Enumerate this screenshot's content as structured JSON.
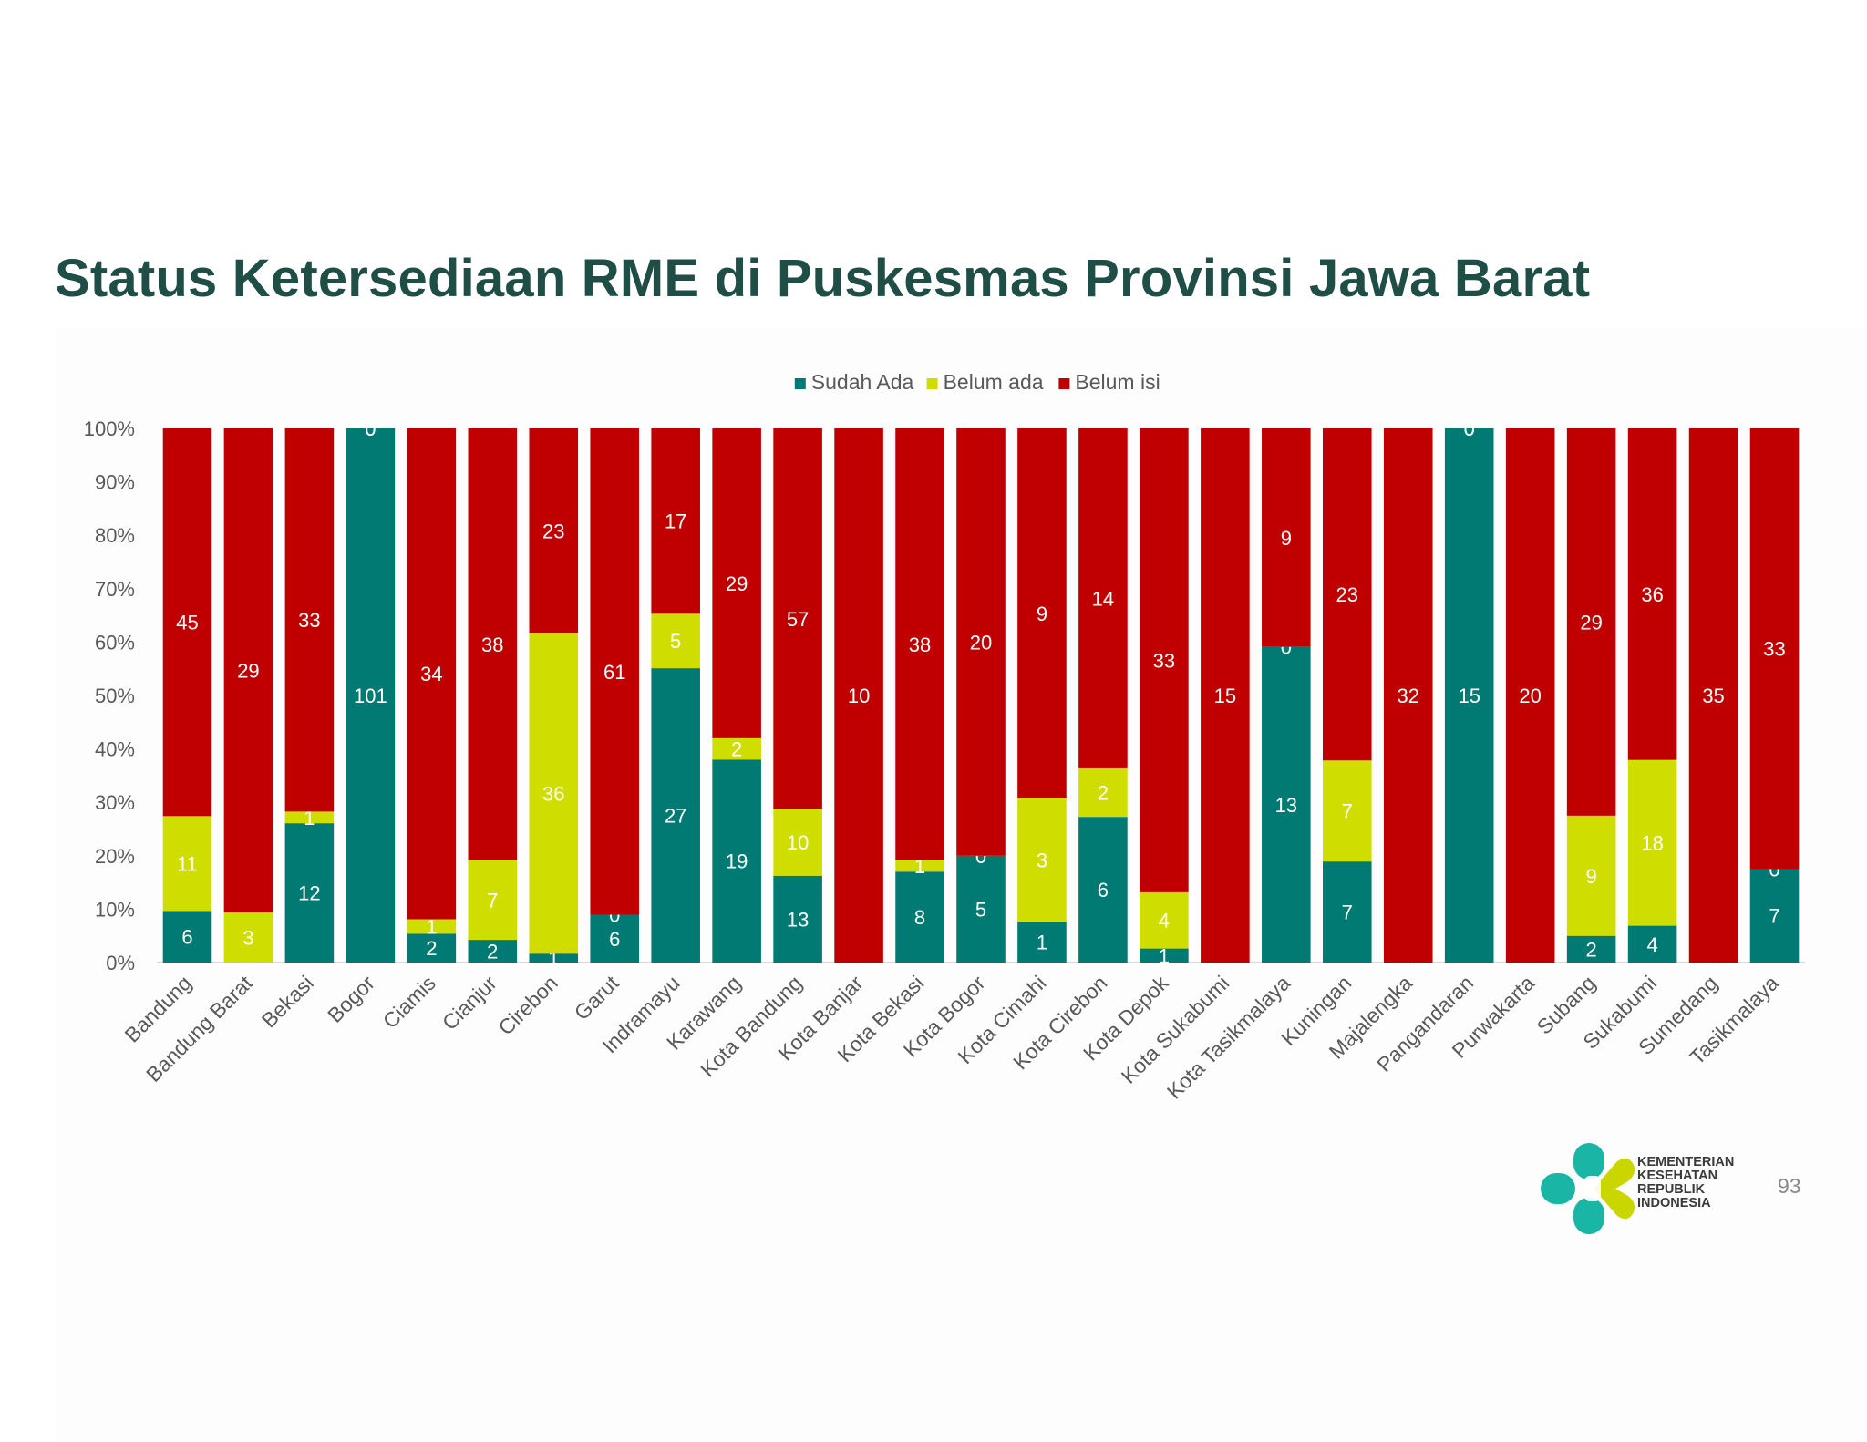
{
  "slide": {
    "title": "Status Ketersediaan RME di Puskesmas Provinsi Jawa Barat",
    "page_number": "93",
    "logo_text": [
      "KEMENTERIAN",
      "KESEHATAN",
      "REPUBLIK",
      "INDONESIA"
    ],
    "logo_icon": "kemenkes-logo-icon"
  },
  "chart_data": {
    "type": "bar",
    "stacked": "percent",
    "title": "",
    "xlabel": "",
    "ylabel": "",
    "ylim": [
      0,
      100
    ],
    "y_ticks": [
      "0%",
      "10%",
      "20%",
      "30%",
      "40%",
      "50%",
      "60%",
      "70%",
      "80%",
      "90%",
      "100%"
    ],
    "legend_position": "top",
    "grid": false,
    "categories": [
      "Bandung",
      "Bandung Barat",
      "Bekasi",
      "Bogor",
      "Ciamis",
      "Cianjur",
      "Cirebon",
      "Garut",
      "Indramayu",
      "Karawang",
      "Kota Bandung",
      "Kota Banjar",
      "Kota Bekasi",
      "Kota Bogor",
      "Kota Cimahi",
      "Kota Cirebon",
      "Kota Depok",
      "Kota Sukabumi",
      "Kota Tasikmalaya",
      "Kuningan",
      "Majalengka",
      "Pangandaran",
      "Purwakarta",
      "Subang",
      "Sukabumi",
      "Sumedang",
      "Tasikmalaya"
    ],
    "series": [
      {
        "name": "Sudah Ada",
        "color": "#007a73",
        "values": [
          6,
          0,
          12,
          101,
          2,
          2,
          1,
          6,
          27,
          19,
          13,
          0,
          8,
          5,
          1,
          6,
          1,
          0,
          13,
          7,
          0,
          15,
          0,
          2,
          4,
          0,
          7
        ]
      },
      {
        "name": "Belum ada",
        "color": "#d0dd00",
        "values": [
          11,
          3,
          1,
          0,
          1,
          7,
          36,
          0,
          5,
          2,
          10,
          0,
          1,
          0,
          3,
          2,
          4,
          0,
          0,
          7,
          0,
          0,
          0,
          9,
          18,
          0,
          0
        ]
      },
      {
        "name": "Belum isi",
        "color": "#c00000",
        "values": [
          45,
          29,
          33,
          0,
          34,
          38,
          23,
          61,
          17,
          29,
          57,
          10,
          38,
          20,
          9,
          14,
          33,
          15,
          9,
          23,
          32,
          0,
          20,
          29,
          36,
          35,
          33
        ]
      }
    ]
  }
}
